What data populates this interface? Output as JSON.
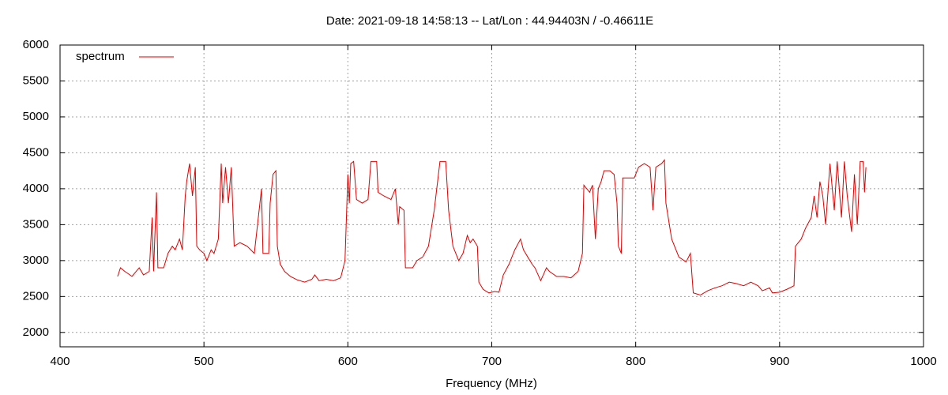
{
  "chart_data": {
    "type": "line",
    "title": "Date: 2021-09-18 14:58:13  --  Lat/Lon : 44.94403N / -0.46611E",
    "x_label": "Frequency (MHz)",
    "xlim": [
      400,
      1000
    ],
    "xticks": [
      400,
      500,
      600,
      700,
      800,
      900,
      1000
    ],
    "ylim": [
      1800,
      6000
    ],
    "yticks": [
      2000,
      2500,
      3000,
      3500,
      4000,
      4500,
      5000,
      5500,
      6000
    ],
    "grid": true,
    "legend": "top-left",
    "series": [
      {
        "name": "spectrum",
        "color": "#e00000",
        "x": [
          440,
          442,
          445,
          450,
          455,
          458,
          462,
          464,
          465,
          467,
          468,
          472,
          475,
          478,
          480,
          483,
          485,
          487,
          488,
          490,
          492,
          494,
          495,
          497,
          500,
          502,
          505,
          507,
          510,
          512,
          513,
          515,
          517,
          519,
          521,
          525,
          530,
          535,
          540,
          541,
          545,
          546,
          548,
          550,
          551,
          553,
          556,
          560,
          565,
          570,
          575,
          577,
          580,
          585,
          590,
          595,
          598,
          600,
          601,
          602,
          604,
          606,
          610,
          614,
          616,
          620,
          621,
          625,
          630,
          633,
          635,
          636,
          639,
          640,
          645,
          648,
          652,
          656,
          660,
          664,
          668,
          670,
          673,
          677,
          680,
          683,
          685,
          687,
          690,
          691,
          694,
          698,
          702,
          705,
          708,
          712,
          716,
          720,
          722,
          725,
          728,
          730,
          734,
          738,
          740,
          745,
          750,
          755,
          760,
          763,
          764,
          768,
          770,
          772,
          774,
          776,
          778,
          782,
          785,
          787,
          788,
          790,
          791,
          795,
          799,
          802,
          806,
          810,
          812,
          814,
          818,
          820,
          821,
          825,
          830,
          835,
          838,
          840,
          845,
          850,
          855,
          860,
          865,
          870,
          875,
          880,
          885,
          888,
          893,
          895,
          900,
          905,
          910,
          911,
          915,
          918,
          922,
          924,
          926,
          928,
          930,
          932,
          935,
          938,
          940,
          943,
          945,
          947,
          950,
          952,
          954,
          956,
          958,
          959,
          960
        ],
        "values": [
          2780,
          2900,
          2850,
          2780,
          2900,
          2800,
          2850,
          3600,
          2850,
          3950,
          2900,
          2900,
          3100,
          3200,
          3150,
          3300,
          3150,
          3900,
          4100,
          4350,
          3900,
          4300,
          3200,
          3150,
          3100,
          3000,
          3150,
          3100,
          3300,
          4350,
          3800,
          4300,
          3800,
          4300,
          3200,
          3250,
          3200,
          3100,
          4000,
          3100,
          3100,
          3800,
          4200,
          4250,
          3200,
          2950,
          2850,
          2780,
          2730,
          2700,
          2740,
          2800,
          2720,
          2740,
          2720,
          2760,
          3000,
          4200,
          3800,
          4350,
          4380,
          3850,
          3800,
          3850,
          4380,
          4380,
          3950,
          3900,
          3850,
          4000,
          3500,
          3750,
          3700,
          2900,
          2900,
          3000,
          3050,
          3200,
          3700,
          4380,
          4380,
          3700,
          3200,
          3000,
          3100,
          3350,
          3250,
          3300,
          3200,
          2700,
          2600,
          2550,
          2570,
          2560,
          2800,
          2950,
          3150,
          3300,
          3150,
          3050,
          2950,
          2900,
          2720,
          2900,
          2850,
          2780,
          2780,
          2760,
          2850,
          3100,
          4050,
          3950,
          4050,
          3300,
          4000,
          4100,
          4250,
          4250,
          4200,
          3800,
          3200,
          3100,
          4150,
          4150,
          4150,
          4300,
          4350,
          4300,
          3700,
          4300,
          4350,
          4400,
          3800,
          3300,
          3050,
          2980,
          3100,
          2550,
          2520,
          2580,
          2620,
          2650,
          2700,
          2680,
          2650,
          2700,
          2650,
          2580,
          2620,
          2550,
          2560,
          2600,
          2650,
          3200,
          3300,
          3450,
          3600,
          3900,
          3600,
          4100,
          3900,
          3500,
          4350,
          3700,
          4380,
          3600,
          4380,
          3900,
          3400,
          4200,
          3500,
          4380,
          4380,
          3950,
          4300
        ]
      }
    ]
  }
}
